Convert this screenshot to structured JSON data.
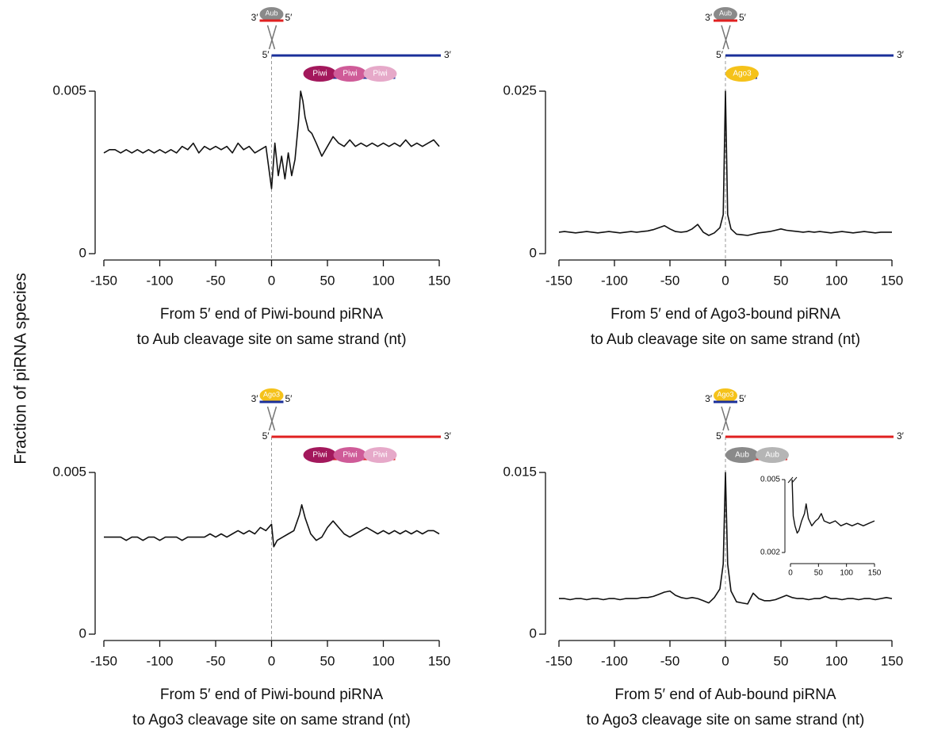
{
  "figure": {
    "ylabel": "Fraction of piRNA species"
  },
  "chart_data": [
    {
      "type": "line",
      "xlabel": [
        "From 5′ end of Piwi-bound piRNA",
        "to Aub cleavage site on same strand (nt)"
      ],
      "xlim": [
        -150,
        150
      ],
      "xticks": [
        -150,
        -100,
        -50,
        0,
        50,
        100,
        150
      ],
      "ylim": [
        0,
        0.005
      ],
      "yticks": [
        0,
        0.005
      ],
      "color": "#111111",
      "x": [
        -150,
        -145,
        -140,
        -135,
        -130,
        -125,
        -120,
        -115,
        -110,
        -105,
        -100,
        -95,
        -90,
        -85,
        -80,
        -75,
        -70,
        -65,
        -60,
        -55,
        -50,
        -45,
        -40,
        -35,
        -30,
        -25,
        -20,
        -15,
        -10,
        -5,
        0,
        3,
        6,
        9,
        12,
        15,
        18,
        21,
        24,
        26,
        28,
        30,
        33,
        36,
        40,
        45,
        50,
        55,
        60,
        65,
        70,
        75,
        80,
        85,
        90,
        95,
        100,
        105,
        110,
        115,
        120,
        125,
        130,
        135,
        140,
        145,
        150
      ],
      "values": [
        0.0031,
        0.0032,
        0.0032,
        0.0031,
        0.0032,
        0.0031,
        0.0032,
        0.0031,
        0.0032,
        0.0031,
        0.0032,
        0.0031,
        0.0032,
        0.0031,
        0.0033,
        0.0032,
        0.0034,
        0.0031,
        0.0033,
        0.0032,
        0.0033,
        0.0032,
        0.0033,
        0.0031,
        0.0034,
        0.0032,
        0.0033,
        0.0031,
        0.0032,
        0.0033,
        0.002,
        0.0034,
        0.0024,
        0.003,
        0.0023,
        0.0031,
        0.0024,
        0.0029,
        0.004,
        0.005,
        0.0047,
        0.0042,
        0.0038,
        0.0037,
        0.0034,
        0.003,
        0.0033,
        0.0036,
        0.0034,
        0.0033,
        0.0035,
        0.0033,
        0.0034,
        0.0033,
        0.0034,
        0.0033,
        0.0034,
        0.0033,
        0.0034,
        0.0033,
        0.0035,
        0.0033,
        0.0034,
        0.0033,
        0.0034,
        0.0035,
        0.0033
      ],
      "diagram": {
        "guide_3": "3′",
        "guide_protein": "Aub",
        "guide_5": "5′",
        "guide_protein_color": "#8a8a8a",
        "guide_strand_color": "#e02020",
        "target_5": "5′",
        "target_3": "3′",
        "target_color": "#1a2f9a",
        "proteins": [
          "Piwi",
          "Piwi",
          "Piwi"
        ],
        "protein_colors": [
          "#a3185c",
          "#cf5b98",
          "#e6a9c9"
        ],
        "pirna_color": "#1a2f9a"
      }
    },
    {
      "type": "line",
      "xlabel": [
        "From 5′ end of Ago3-bound piRNA",
        "to Aub cleavage site on same strand (nt)"
      ],
      "xlim": [
        -150,
        150
      ],
      "xticks": [
        -150,
        -100,
        -50,
        0,
        50,
        100,
        150
      ],
      "ylim": [
        0,
        0.025
      ],
      "yticks": [
        0,
        0.025
      ],
      "color": "#111111",
      "x": [
        -150,
        -145,
        -140,
        -135,
        -130,
        -125,
        -120,
        -115,
        -110,
        -105,
        -100,
        -95,
        -90,
        -85,
        -80,
        -75,
        -70,
        -65,
        -60,
        -55,
        -50,
        -45,
        -40,
        -35,
        -30,
        -25,
        -20,
        -15,
        -10,
        -5,
        -2,
        0,
        2,
        5,
        10,
        15,
        20,
        25,
        30,
        35,
        40,
        45,
        50,
        55,
        60,
        65,
        70,
        75,
        80,
        85,
        90,
        95,
        100,
        105,
        110,
        115,
        120,
        125,
        130,
        135,
        140,
        145,
        150
      ],
      "values": [
        0.0033,
        0.0034,
        0.0033,
        0.0032,
        0.0033,
        0.0034,
        0.0033,
        0.0032,
        0.0033,
        0.0034,
        0.0033,
        0.0032,
        0.0033,
        0.0034,
        0.0033,
        0.0034,
        0.0035,
        0.0037,
        0.004,
        0.0043,
        0.0038,
        0.0034,
        0.0033,
        0.0034,
        0.0038,
        0.0045,
        0.0033,
        0.0028,
        0.0032,
        0.004,
        0.006,
        0.025,
        0.006,
        0.0038,
        0.003,
        0.0029,
        0.0028,
        0.003,
        0.0032,
        0.0033,
        0.0034,
        0.0036,
        0.0038,
        0.0036,
        0.0035,
        0.0034,
        0.0033,
        0.0034,
        0.0033,
        0.0034,
        0.0033,
        0.0032,
        0.0033,
        0.0034,
        0.0033,
        0.0032,
        0.0033,
        0.0034,
        0.0033,
        0.0032,
        0.0033,
        0.0033,
        0.0033
      ],
      "diagram": {
        "guide_3": "3′",
        "guide_protein": "Aub",
        "guide_5": "5′",
        "guide_protein_color": "#8a8a8a",
        "guide_strand_color": "#e02020",
        "target_5": "5′",
        "target_3": "3′",
        "target_color": "#1a2f9a",
        "proteins": [
          "Ago3"
        ],
        "protein_colors": [
          "#f5c21a"
        ],
        "pirna_color": "#1a2f9a"
      }
    },
    {
      "type": "line",
      "xlabel": [
        "From 5′ end of Piwi-bound piRNA",
        "to Ago3 cleavage site on same strand (nt)"
      ],
      "xlim": [
        -150,
        150
      ],
      "xticks": [
        -150,
        -100,
        -50,
        0,
        50,
        100,
        150
      ],
      "ylim": [
        0,
        0.005
      ],
      "yticks": [
        0,
        0.005
      ],
      "color": "#111111",
      "x": [
        -150,
        -145,
        -140,
        -135,
        -130,
        -125,
        -120,
        -115,
        -110,
        -105,
        -100,
        -95,
        -90,
        -85,
        -80,
        -75,
        -70,
        -65,
        -60,
        -55,
        -50,
        -45,
        -40,
        -35,
        -30,
        -25,
        -20,
        -15,
        -10,
        -5,
        0,
        2,
        5,
        10,
        15,
        20,
        25,
        27,
        30,
        35,
        40,
        45,
        50,
        55,
        60,
        65,
        70,
        75,
        80,
        85,
        90,
        95,
        100,
        105,
        110,
        115,
        120,
        125,
        130,
        135,
        140,
        145,
        150
      ],
      "values": [
        0.003,
        0.003,
        0.003,
        0.003,
        0.0029,
        0.003,
        0.003,
        0.0029,
        0.003,
        0.003,
        0.0029,
        0.003,
        0.003,
        0.003,
        0.0029,
        0.003,
        0.003,
        0.003,
        0.003,
        0.0031,
        0.003,
        0.0031,
        0.003,
        0.0031,
        0.0032,
        0.0031,
        0.0032,
        0.0031,
        0.0033,
        0.0032,
        0.0034,
        0.0027,
        0.0029,
        0.003,
        0.0031,
        0.0032,
        0.0037,
        0.004,
        0.0036,
        0.0031,
        0.0029,
        0.003,
        0.0033,
        0.0035,
        0.0033,
        0.0031,
        0.003,
        0.0031,
        0.0032,
        0.0033,
        0.0032,
        0.0031,
        0.0032,
        0.0031,
        0.0032,
        0.0031,
        0.0032,
        0.0031,
        0.0032,
        0.0031,
        0.0032,
        0.0032,
        0.0031
      ],
      "diagram": {
        "guide_3": "3′",
        "guide_protein": "Ago3",
        "guide_5": "5′",
        "guide_protein_color": "#f5c21a",
        "guide_strand_color": "#1a2f9a",
        "target_5": "5′",
        "target_3": "3′",
        "target_color": "#e02020",
        "proteins": [
          "Piwi",
          "Piwi",
          "Piwi"
        ],
        "protein_colors": [
          "#a3185c",
          "#cf5b98",
          "#e6a9c9"
        ],
        "pirna_color": "#e02020"
      }
    },
    {
      "type": "line",
      "xlabel": [
        "From 5′ end of Aub-bound piRNA",
        "to Ago3 cleavage site on same strand (nt)"
      ],
      "xlim": [
        -150,
        150
      ],
      "xticks": [
        -150,
        -100,
        -50,
        0,
        50,
        100,
        150
      ],
      "ylim": [
        0,
        0.015
      ],
      "yticks": [
        0,
        0.015
      ],
      "color": "#111111",
      "x": [
        -150,
        -145,
        -140,
        -135,
        -130,
        -125,
        -120,
        -115,
        -110,
        -105,
        -100,
        -95,
        -90,
        -85,
        -80,
        -75,
        -70,
        -65,
        -60,
        -55,
        -50,
        -45,
        -40,
        -35,
        -30,
        -25,
        -20,
        -15,
        -10,
        -5,
        -2,
        0,
        2,
        5,
        10,
        15,
        20,
        25,
        30,
        35,
        40,
        45,
        50,
        55,
        60,
        65,
        70,
        75,
        80,
        85,
        90,
        95,
        100,
        105,
        110,
        115,
        120,
        125,
        130,
        135,
        140,
        145,
        150
      ],
      "values": [
        0.0033,
        0.0033,
        0.0032,
        0.0033,
        0.0033,
        0.0032,
        0.0033,
        0.0033,
        0.0032,
        0.0033,
        0.0033,
        0.0032,
        0.0033,
        0.0033,
        0.0033,
        0.0034,
        0.0034,
        0.0035,
        0.0037,
        0.0039,
        0.004,
        0.0036,
        0.0034,
        0.0033,
        0.0034,
        0.0033,
        0.0031,
        0.0029,
        0.0034,
        0.0042,
        0.0065,
        0.015,
        0.0065,
        0.004,
        0.003,
        0.0029,
        0.0028,
        0.0038,
        0.0033,
        0.0031,
        0.0031,
        0.0032,
        0.0034,
        0.0036,
        0.0034,
        0.0033,
        0.0033,
        0.0032,
        0.0033,
        0.0033,
        0.0035,
        0.0033,
        0.0033,
        0.0032,
        0.0033,
        0.0033,
        0.0032,
        0.0033,
        0.0033,
        0.0032,
        0.0033,
        0.0034,
        0.0033
      ],
      "diagram": {
        "guide_3": "3′",
        "guide_protein": "Ago3",
        "guide_5": "5′",
        "guide_protein_color": "#f5c21a",
        "guide_strand_color": "#1a2f9a",
        "target_5": "5′",
        "target_3": "3′",
        "target_color": "#e02020",
        "proteins": [
          "Aub",
          "Aub"
        ],
        "protein_colors": [
          "#8a8a8a",
          "#b5b5b5"
        ],
        "pirna_color": "#e02020"
      },
      "inset": {
        "type": "line",
        "xlim": [
          0,
          150
        ],
        "xticks": [
          0,
          50,
          100,
          150
        ],
        "ylim": [
          0.002,
          0.005
        ],
        "yticks": [
          0.002,
          0.005
        ],
        "x": [
          3,
          5,
          8,
          12,
          15,
          20,
          25,
          28,
          32,
          38,
          45,
          50,
          55,
          60,
          70,
          80,
          90,
          100,
          110,
          120,
          130,
          140,
          150
        ],
        "values": [
          0.005,
          0.0035,
          0.0031,
          0.0028,
          0.0029,
          0.0033,
          0.0036,
          0.004,
          0.0034,
          0.0031,
          0.0033,
          0.0034,
          0.0036,
          0.0033,
          0.0032,
          0.0033,
          0.0031,
          0.0032,
          0.0031,
          0.0032,
          0.0031,
          0.0032,
          0.0033
        ]
      }
    }
  ]
}
